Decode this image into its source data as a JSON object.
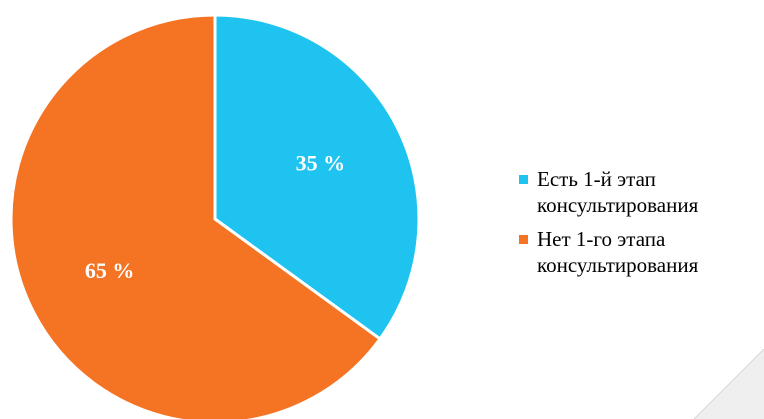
{
  "chart_data": {
    "type": "pie",
    "categories": [
      "Есть 1-й этап консультирования",
      "Нет 1-го этапа консультирования"
    ],
    "values": [
      35,
      65
    ],
    "colors": [
      "#1FC3EF",
      "#F47423"
    ],
    "slice_labels": [
      "35 %",
      "65 %"
    ],
    "legend": [
      "Есть 1-й этап консультирования",
      "Нет 1-го этапа консультирования"
    ],
    "legend_position": "right",
    "title": ""
  }
}
